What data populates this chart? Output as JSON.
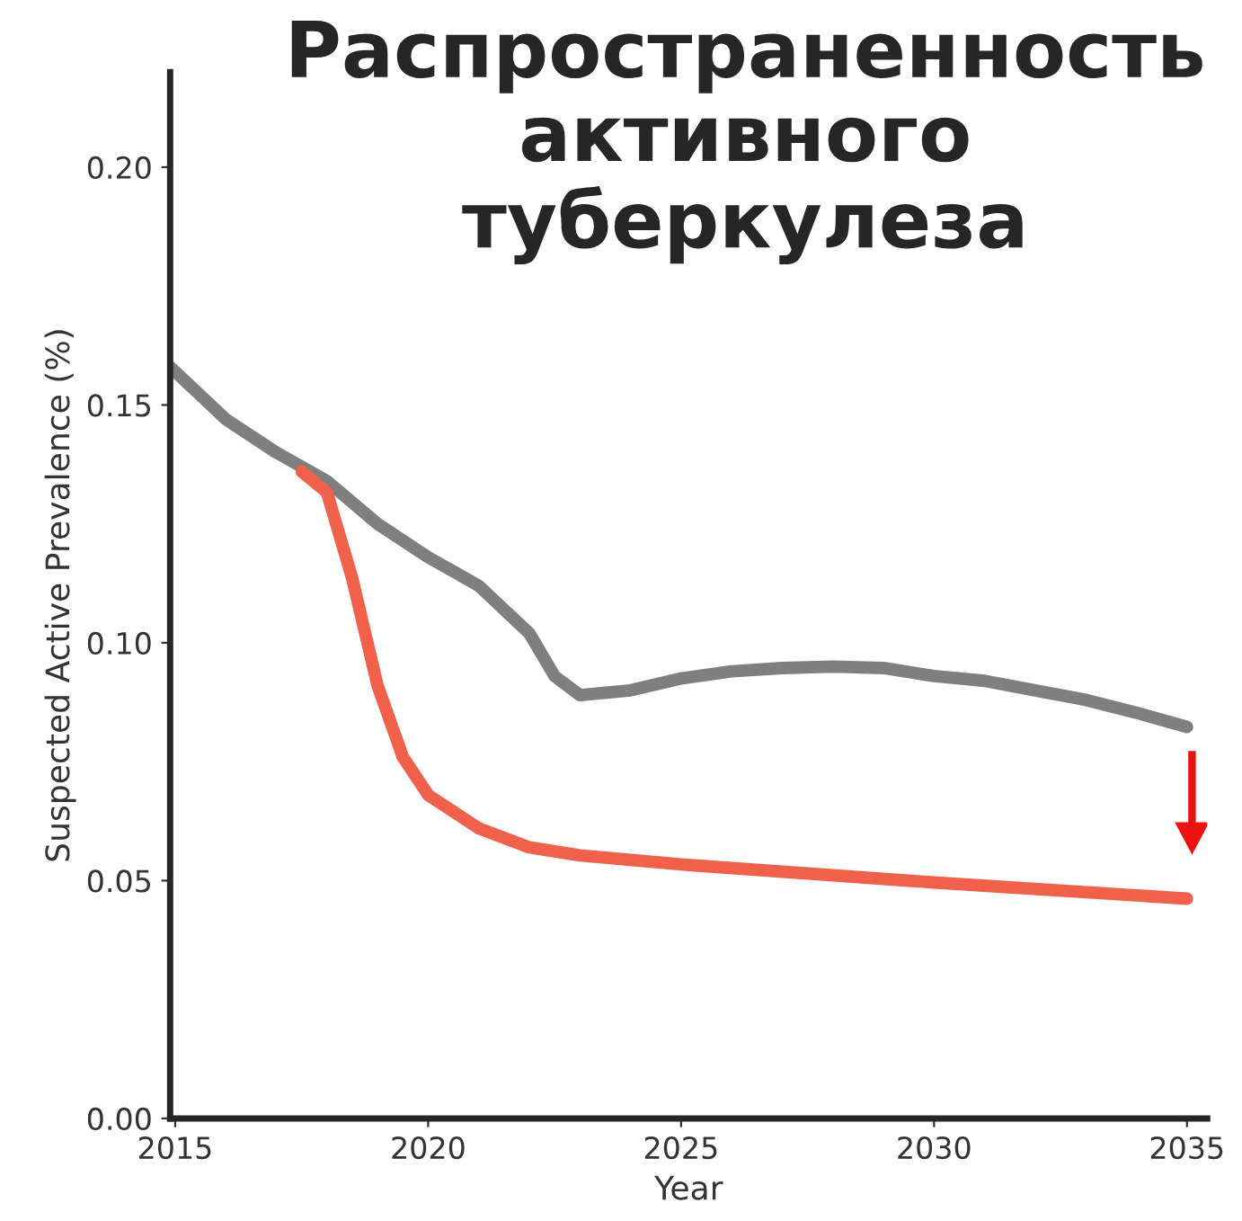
{
  "chart_data": {
    "type": "line",
    "title": "Распространенность\nактивного\nтуберкулеза",
    "xlabel": "Year",
    "ylabel": "Suspected Active Prevalence (%)",
    "xlim": [
      2014.9,
      2035.4
    ],
    "xticks": [
      2015,
      2020,
      2025,
      2030,
      2035
    ],
    "ylim": [
      0,
      0.22
    ],
    "yticks": [
      {
        "value": 0,
        "label": "0.00"
      },
      {
        "value": 0.05,
        "label": "0.05"
      },
      {
        "value": 0.1,
        "label": "0.10"
      },
      {
        "value": 0.15,
        "label": "0.15"
      },
      {
        "value": 0.2,
        "label": "0.20"
      }
    ],
    "grid": false,
    "legend": false,
    "marker": "none",
    "line_style": "solid",
    "series": [
      {
        "color": "#7f7f7f",
        "x": [
          2014.9,
          2016,
          2017,
          2018,
          2019,
          2020,
          2021,
          2022,
          2022.5,
          2023,
          2024,
          2025,
          2026,
          2027,
          2028,
          2029,
          2030,
          2031,
          2032,
          2033,
          2034,
          2035
        ],
        "values": [
          0.158,
          0.147,
          0.14,
          0.134,
          0.125,
          0.118,
          0.112,
          0.102,
          0.093,
          0.089,
          0.09,
          0.0925,
          0.094,
          0.0947,
          0.095,
          0.0947,
          0.093,
          0.092,
          0.09,
          0.088,
          0.0853,
          0.0823
        ]
      },
      {
        "color": "#f0604a",
        "x": [
          2017.5,
          2018,
          2018.5,
          2019,
          2019.5,
          2020,
          2021,
          2022,
          2023,
          2025,
          2030,
          2035
        ],
        "values": [
          0.136,
          0.1316,
          0.1135,
          0.091,
          0.076,
          0.068,
          0.061,
          0.057,
          0.0553,
          0.0534,
          0.0496,
          0.0462
        ]
      }
    ]
  }
}
